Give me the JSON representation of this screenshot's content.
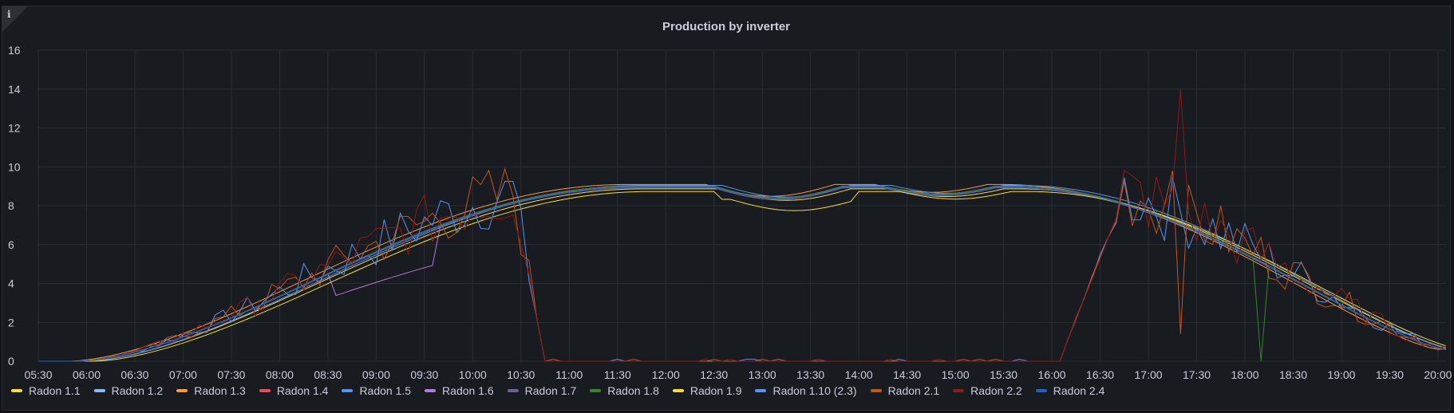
{
  "info_icon": "info-icon",
  "chart_data": {
    "type": "line",
    "title": "Production by inverter",
    "xlabel": "",
    "ylabel": "",
    "ylim": [
      0,
      16
    ],
    "yticks": [
      "0",
      "2",
      "4",
      "6",
      "8",
      "10",
      "12",
      "14",
      "16"
    ],
    "xticks": [
      "05:30",
      "06:00",
      "06:30",
      "07:00",
      "07:30",
      "08:00",
      "08:30",
      "09:00",
      "09:30",
      "10:00",
      "10:30",
      "11:00",
      "11:30",
      "12:00",
      "12:30",
      "13:00",
      "13:30",
      "14:00",
      "14:30",
      "15:00",
      "15:30",
      "16:00",
      "16:30",
      "17:00",
      "17:30",
      "18:00",
      "18:30",
      "19:00",
      "19:30",
      "20:00"
    ],
    "xlim": [
      "05:30",
      "20:05"
    ],
    "grid": true,
    "legend_placement": "bottom",
    "series": [
      {
        "name": "Radon 1.1",
        "color": "#fade2a",
        "pattern": "smooth",
        "scale": 0.985,
        "shift": 1
      },
      {
        "name": "Radon 1.2",
        "color": "#8ab8ff",
        "pattern": "smooth",
        "scale": 1.0,
        "shift": 0
      },
      {
        "name": "Radon 1.3",
        "color": "#ff9830",
        "pattern": "smooth",
        "scale": 1.01,
        "shift": -1
      },
      {
        "name": "Radon 1.4",
        "color": "#f2495c",
        "pattern": "smooth",
        "scale": 0.995,
        "shift": 0
      },
      {
        "name": "Radon 1.5",
        "color": "#5794f2",
        "pattern": "smooth",
        "scale": 1.005,
        "shift": 1
      },
      {
        "name": "Radon 1.6",
        "color": "#b877d9",
        "pattern": "dip",
        "scale": 1.0,
        "shift": 0
      },
      {
        "name": "Radon 1.7",
        "color": "#705da0",
        "pattern": "smooth",
        "scale": 0.99,
        "shift": 0
      },
      {
        "name": "Radon 1.8",
        "color": "#37872d",
        "pattern": "drop",
        "scale": 1.0,
        "shift": 0
      },
      {
        "name": "Radon 1.9",
        "color": "#fade2a",
        "pattern": "lagged",
        "scale": 0.97,
        "shift": 2
      },
      {
        "name": "Radon 1.10 (2.3)",
        "color": "#5794f2",
        "pattern": "noisy",
        "scale": 1.0,
        "shift": 0
      },
      {
        "name": "Radon 2.1",
        "color": "#c4571a",
        "pattern": "noisy",
        "scale": 1.0,
        "shift": 0
      },
      {
        "name": "Radon 2.2",
        "color": "#8f1b16",
        "pattern": "noisy",
        "scale": 1.0,
        "shift": 0
      },
      {
        "name": "Radon 2.4",
        "color": "#1f60c4",
        "pattern": "smooth",
        "scale": 0.995,
        "shift": 0
      }
    ]
  }
}
